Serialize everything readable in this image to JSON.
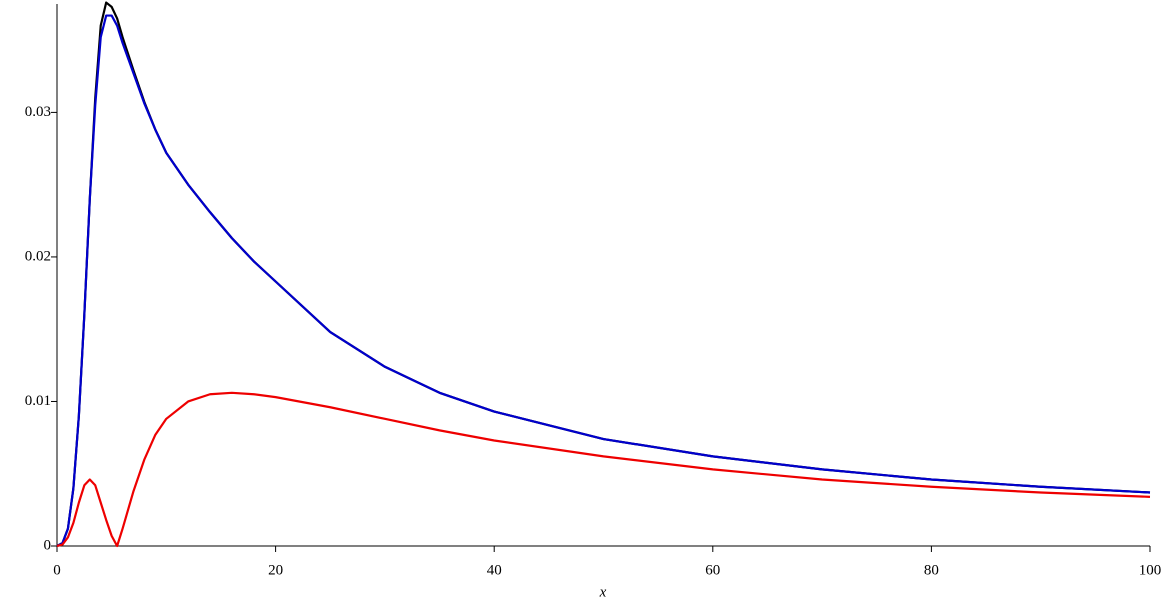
{
  "chart_data": {
    "type": "line",
    "x_label": "x",
    "x": [
      0,
      0.5,
      1,
      1.5,
      2,
      2.5,
      3,
      3.5,
      4,
      4.5,
      5,
      5.5,
      6,
      7,
      8,
      9,
      10,
      12,
      14,
      16,
      18,
      20,
      25,
      30,
      35,
      40,
      50,
      60,
      70,
      80,
      90,
      100
    ],
    "series": [
      {
        "color": "#000000",
        "values": [
          0,
          0.0002,
          0.0012,
          0.004,
          0.009,
          0.016,
          0.024,
          0.031,
          0.036,
          0.0376,
          0.0373,
          0.0365,
          0.0352,
          0.0329,
          0.0307,
          0.0288,
          0.0272,
          0.025,
          0.0231,
          0.0213,
          0.0197,
          0.0183,
          0.0148,
          0.0124,
          0.0106,
          0.0093,
          0.0074,
          0.0062,
          0.0053,
          0.0046,
          0.0041,
          0.0037
        ]
      },
      {
        "color": "#0000cc",
        "values": [
          0,
          0.0002,
          0.0012,
          0.004,
          0.009,
          0.016,
          0.024,
          0.0305,
          0.0352,
          0.0367,
          0.0367,
          0.036,
          0.0348,
          0.0327,
          0.0306,
          0.0288,
          0.0272,
          0.025,
          0.0231,
          0.0213,
          0.0197,
          0.0183,
          0.0148,
          0.0124,
          0.0106,
          0.0093,
          0.0074,
          0.0062,
          0.0053,
          0.0046,
          0.0041,
          0.0037
        ]
      },
      {
        "color": "#ee0000",
        "values": [
          0,
          0.0001,
          0.0006,
          0.0016,
          0.003,
          0.0042,
          0.0046,
          0.0042,
          0.003,
          0.0018,
          0.0007,
          0,
          0.0012,
          0.0038,
          0.006,
          0.0077,
          0.0088,
          0.01,
          0.0105,
          0.0106,
          0.0105,
          0.0103,
          0.0096,
          0.0088,
          0.008,
          0.0073,
          0.0062,
          0.0053,
          0.0046,
          0.0041,
          0.0037,
          0.0034
        ]
      }
    ],
    "xlim": [
      0,
      100
    ],
    "xticks": [
      0,
      20,
      40,
      60,
      80,
      100
    ],
    "ylim": [
      0,
      0.0375
    ],
    "yticks": [
      0,
      0.01,
      0.02,
      0.03
    ]
  }
}
